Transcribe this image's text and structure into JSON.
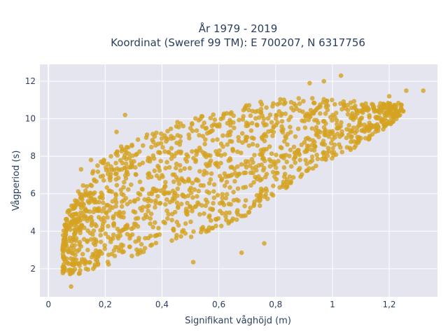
{
  "chart_data": {
    "type": "scatter",
    "title_lines": [
      "År 1979 - 2019",
      "Koordinat (Sweref 99 TM): E 700207, N 6317756"
    ],
    "xlabel": "Signifikant våghöjd (m)",
    "ylabel": "Vågperiod (s)",
    "xlim": [
      -0.03,
      1.37
    ],
    "ylim": [
      0.5,
      12.9
    ],
    "x_ticks": [
      {
        "value": 0,
        "label": "0"
      },
      {
        "value": 0.2,
        "label": "0,2"
      },
      {
        "value": 0.4,
        "label": "0,4"
      },
      {
        "value": 0.6,
        "label": "0,6"
      },
      {
        "value": 0.8,
        "label": "0,8"
      },
      {
        "value": 1.0,
        "label": "1"
      },
      {
        "value": 1.2,
        "label": "1,2"
      }
    ],
    "y_ticks": [
      {
        "value": 2,
        "label": "2"
      },
      {
        "value": 4,
        "label": "4"
      },
      {
        "value": 6,
        "label": "6"
      },
      {
        "value": 8,
        "label": "8"
      },
      {
        "value": 10,
        "label": "10"
      },
      {
        "value": 12,
        "label": "12"
      }
    ],
    "grid": true,
    "legend": "none",
    "colors": {
      "marker": "#d4a320",
      "plot_background": "#e5e5ef",
      "grid": "#ffffff"
    },
    "marker_opacity": 0.8,
    "cloud_envelope": [
      {
        "x": 0.05,
        "y_low": 1.6,
        "y_high": 4.6
      },
      {
        "x": 0.1,
        "y_low": 1.5,
        "y_high": 6.3
      },
      {
        "x": 0.2,
        "y_low": 1.9,
        "y_high": 8.3
      },
      {
        "x": 0.3,
        "y_low": 2.4,
        "y_high": 9.2
      },
      {
        "x": 0.4,
        "y_low": 2.9,
        "y_high": 9.9
      },
      {
        "x": 0.5,
        "y_low": 3.4,
        "y_high": 10.3
      },
      {
        "x": 0.6,
        "y_low": 3.9,
        "y_high": 10.6
      },
      {
        "x": 0.7,
        "y_low": 4.6,
        "y_high": 11.0
      },
      {
        "x": 0.8,
        "y_low": 5.7,
        "y_high": 11.3
      },
      {
        "x": 0.9,
        "y_low": 6.8,
        "y_high": 11.3
      },
      {
        "x": 1.0,
        "y_low": 7.7,
        "y_high": 11.2
      },
      {
        "x": 1.1,
        "y_low": 8.5,
        "y_high": 11.0
      },
      {
        "x": 1.2,
        "y_low": 9.6,
        "y_high": 10.9
      },
      {
        "x": 1.25,
        "y_low": 10.3,
        "y_high": 10.9
      }
    ],
    "outliers": [
      {
        "x": 0.08,
        "y": 1.05
      },
      {
        "x": 0.115,
        "y": 7.3
      },
      {
        "x": 0.15,
        "y": 7.8
      },
      {
        "x": 0.24,
        "y": 9.3
      },
      {
        "x": 0.27,
        "y": 10.2
      },
      {
        "x": 0.51,
        "y": 2.35
      },
      {
        "x": 0.68,
        "y": 2.85
      },
      {
        "x": 0.76,
        "y": 3.35
      },
      {
        "x": 0.92,
        "y": 11.9
      },
      {
        "x": 0.97,
        "y": 12.0
      },
      {
        "x": 1.03,
        "y": 12.3
      },
      {
        "x": 1.2,
        "y": 11.2
      },
      {
        "x": 1.26,
        "y": 11.5
      },
      {
        "x": 1.32,
        "y": 11.5
      }
    ]
  }
}
